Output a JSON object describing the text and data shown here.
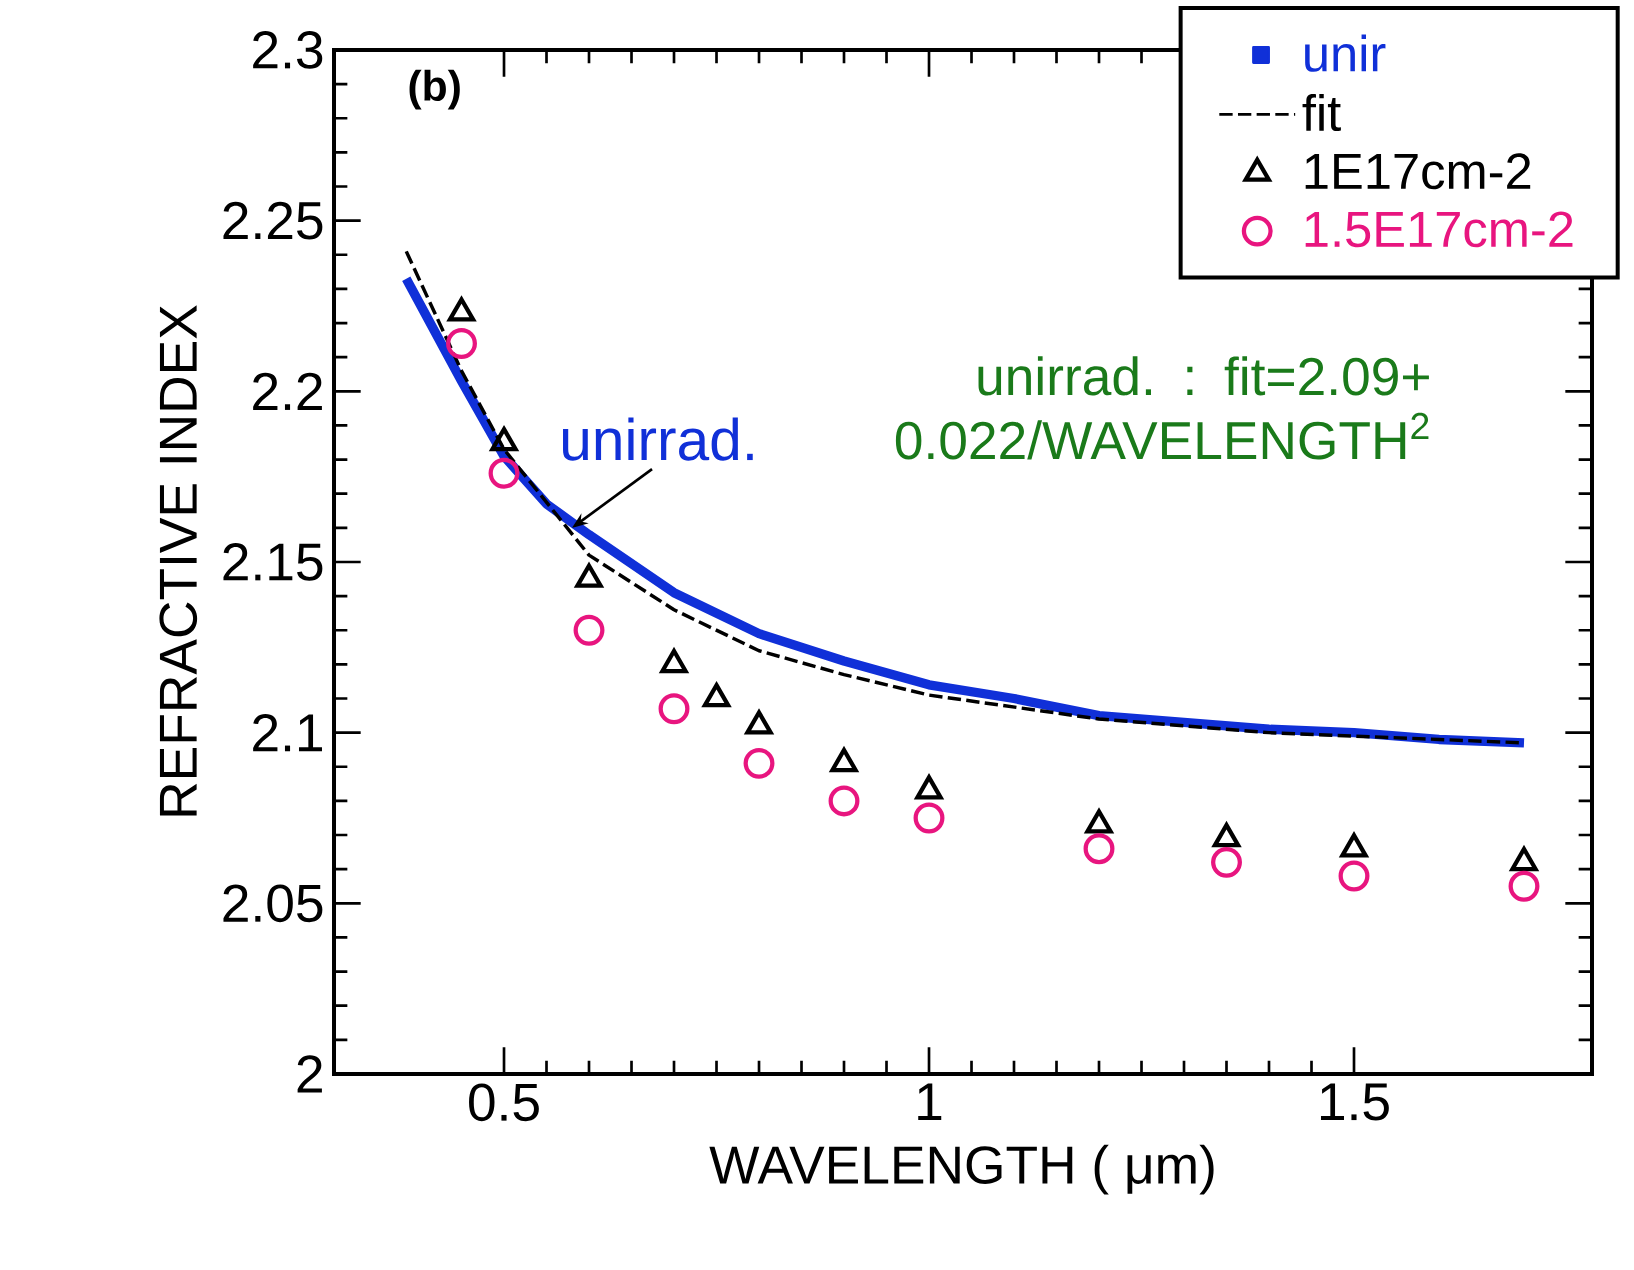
{
  "chart_data": {
    "type": "line",
    "xlabel": "WAVELENGTH ( μm)",
    "ylabel": "REFRACTIVE INDEX",
    "xlim": [
      0.3,
      1.78
    ],
    "ylim": [
      2,
      2.3
    ],
    "xticks": [
      0.5,
      1,
      1.5
    ],
    "yticks": [
      2,
      2.05,
      2.1,
      2.15,
      2.2,
      2.25,
      2.3
    ],
    "grid": false,
    "legend": "top right",
    "annotations": [
      "(b)",
      {
        "text": "unirrad.",
        "x": 0.58,
        "y": 2.16
      },
      "unirrad. : fit=2.09+ 0.022/WAVELENGTH$^{2}$"
    ],
    "series": [
      {
        "name": "unir",
        "color": "#1030d8",
        "line_style": "solid",
        "marker": "none",
        "x": [
          0.385,
          0.45,
          0.5,
          0.55,
          0.6,
          0.7,
          0.8,
          0.9,
          1.0,
          1.1,
          1.2,
          1.3,
          1.4,
          1.5,
          1.6,
          1.7
        ],
        "values": [
          2.233,
          2.203,
          2.181,
          2.167,
          2.158,
          2.141,
          2.129,
          2.121,
          2.114,
          2.11,
          2.105,
          2.103,
          2.101,
          2.1,
          2.098,
          2.097
        ]
      },
      {
        "name": "fit",
        "color": "#000000",
        "line_style": "dashed",
        "marker": "none",
        "x": [
          0.385,
          0.45,
          0.5,
          0.6,
          0.7,
          0.8,
          0.9,
          1.0,
          1.2,
          1.4,
          1.6,
          1.7
        ],
        "values": [
          2.241,
          2.206,
          2.183,
          2.152,
          2.136,
          2.124,
          2.117,
          2.111,
          2.104,
          2.1,
          2.098,
          2.097
        ]
      },
      {
        "name": "1E17cm-2",
        "color": "#000000",
        "type": "scatter",
        "marker": "triangle",
        "x": [
          0.45,
          0.5,
          0.6,
          0.7,
          0.75,
          0.8,
          0.9,
          1.0,
          1.2,
          1.35,
          1.5,
          1.7
        ],
        "values": [
          2.223,
          2.185,
          2.145,
          2.12,
          2.11,
          2.102,
          2.091,
          2.083,
          2.073,
          2.069,
          2.066,
          2.062
        ]
      },
      {
        "name": "1.5E17cm-2",
        "color": "#e8157f",
        "type": "scatter",
        "marker": "circle",
        "x": [
          0.45,
          0.5,
          0.6,
          0.7,
          0.8,
          0.9,
          1.0,
          1.2,
          1.35,
          1.5,
          1.7
        ],
        "values": [
          2.214,
          2.176,
          2.13,
          2.107,
          2.091,
          2.08,
          2.075,
          2.066,
          2.062,
          2.058,
          2.055
        ]
      }
    ]
  }
}
